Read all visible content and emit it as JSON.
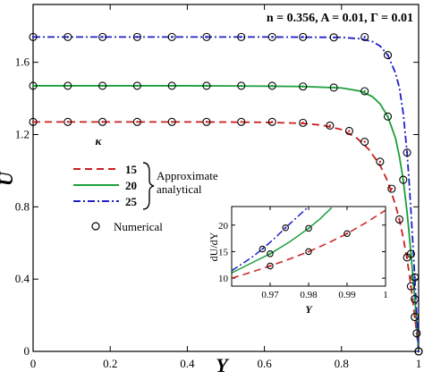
{
  "chart_data": [
    {
      "type": "line",
      "title": "",
      "annotation": "n = 0.356, A = 0.01, Γ = 0.01",
      "xlabel": "Y",
      "ylabel": "U",
      "xlim": [
        0,
        1
      ],
      "ylim": [
        0,
        1.92
      ],
      "xticks": [
        0,
        0.2,
        0.4,
        0.6,
        0.8,
        1
      ],
      "xtick_labels": [
        "0",
        "0.2",
        "0.4",
        "0.6",
        "0.8",
        "1"
      ],
      "yticks": [
        0,
        0.4,
        0.8,
        1.2,
        1.6
      ],
      "ytick_labels": [
        "0",
        "0.4",
        "0.8",
        "1.2",
        "1.6"
      ],
      "grid": false,
      "legend": {
        "placement": "middle-left",
        "title": "κ",
        "group_label_line1": "Approximate",
        "group_label_line2": "analytical",
        "numerical_label": "Numerical"
      },
      "series": [
        {
          "name": "15",
          "color": "#cc1f1f",
          "dash": "dashed",
          "x": [
            0,
            0.2,
            0.4,
            0.6,
            0.7,
            0.75,
            0.8,
            0.84,
            0.87,
            0.9,
            0.92,
            0.94,
            0.95,
            0.96,
            0.97,
            0.975,
            0.98,
            0.985,
            0.99,
            0.995,
            1.0
          ],
          "y": [
            1.27,
            1.27,
            1.27,
            1.268,
            1.262,
            1.252,
            1.228,
            1.18,
            1.12,
            1.03,
            0.94,
            0.81,
            0.73,
            0.63,
            0.51,
            0.44,
            0.36,
            0.28,
            0.19,
            0.1,
            0.0
          ]
        },
        {
          "name": "20",
          "color": "#1aa03c",
          "dash": "solid",
          "x": [
            0,
            0.2,
            0.4,
            0.6,
            0.7,
            0.8,
            0.85,
            0.88,
            0.9,
            0.92,
            0.94,
            0.95,
            0.96,
            0.97,
            0.975,
            0.98,
            0.985,
            0.99,
            0.995,
            1.0
          ],
          "y": [
            1.47,
            1.47,
            1.47,
            1.468,
            1.466,
            1.458,
            1.44,
            1.41,
            1.37,
            1.3,
            1.18,
            1.08,
            0.95,
            0.77,
            0.66,
            0.54,
            0.42,
            0.29,
            0.15,
            0.0
          ]
        },
        {
          "name": "25",
          "color": "#2020c8",
          "dash": "dashdot",
          "x": [
            0,
            0.2,
            0.4,
            0.6,
            0.8,
            0.85,
            0.88,
            0.9,
            0.92,
            0.94,
            0.95,
            0.96,
            0.97,
            0.975,
            0.98,
            0.985,
            0.99,
            0.995,
            1.0
          ],
          "y": [
            1.74,
            1.74,
            1.74,
            1.74,
            1.738,
            1.73,
            1.715,
            1.69,
            1.64,
            1.54,
            1.46,
            1.32,
            1.1,
            0.95,
            0.78,
            0.6,
            0.41,
            0.21,
            0.0
          ]
        }
      ],
      "numerical_points": [
        {
          "series": "15",
          "x": [
            0,
            0.09,
            0.18,
            0.27,
            0.36,
            0.45,
            0.54,
            0.62,
            0.7,
            0.77,
            0.82,
            0.86,
            0.9,
            0.93,
            0.95,
            0.97,
            0.98,
            0.99,
            0.995,
            1.0
          ],
          "y": [
            1.27,
            1.27,
            1.27,
            1.27,
            1.27,
            1.27,
            1.27,
            1.27,
            1.265,
            1.25,
            1.22,
            1.16,
            1.05,
            0.9,
            0.73,
            0.52,
            0.36,
            0.19,
            0.1,
            0.0
          ]
        },
        {
          "series": "20",
          "x": [
            0,
            0.09,
            0.18,
            0.27,
            0.36,
            0.45,
            0.54,
            0.62,
            0.7,
            0.78,
            0.86,
            0.92,
            0.96,
            0.98,
            0.99,
            1.0
          ],
          "y": [
            1.47,
            1.47,
            1.47,
            1.47,
            1.47,
            1.47,
            1.47,
            1.47,
            1.466,
            1.46,
            1.44,
            1.3,
            0.95,
            0.54,
            0.29,
            0.0
          ]
        },
        {
          "series": "25",
          "x": [
            0,
            0.09,
            0.18,
            0.27,
            0.36,
            0.45,
            0.54,
            0.62,
            0.7,
            0.78,
            0.86,
            0.92,
            0.97,
            0.99,
            1.0
          ],
          "y": [
            1.74,
            1.74,
            1.74,
            1.74,
            1.74,
            1.74,
            1.74,
            1.74,
            1.74,
            1.738,
            1.74,
            1.64,
            1.1,
            0.41,
            0.0
          ]
        }
      ]
    },
    {
      "type": "line",
      "title": "",
      "xlabel": "Y",
      "ylabel": "dU/dY",
      "xlim": [
        0.96,
        1.0
      ],
      "ylim": [
        8.5,
        23.5
      ],
      "xticks": [
        0.97,
        0.98,
        0.99,
        1.0
      ],
      "xtick_labels": [
        "0.97",
        "0.98",
        "0.99",
        "1"
      ],
      "yticks": [
        10,
        15,
        20
      ],
      "ytick_labels": [
        "10",
        "15",
        "20"
      ],
      "grid": false,
      "series": [
        {
          "name": "15",
          "color": "#cc1f1f",
          "dash": "dashed",
          "x": [
            0.96,
            0.965,
            0.97,
            0.975,
            0.98,
            0.985,
            0.99,
            0.995,
            1.0
          ],
          "y": [
            10.0,
            11.1,
            12.3,
            13.6,
            15.0,
            16.6,
            18.4,
            20.5,
            22.8
          ]
        },
        {
          "name": "20",
          "color": "#1aa03c",
          "dash": "solid",
          "x": [
            0.96,
            0.965,
            0.97,
            0.975,
            0.98,
            0.983,
            0.986
          ],
          "y": [
            11.0,
            12.8,
            14.6,
            16.8,
            19.4,
            21.2,
            23.3
          ]
        },
        {
          "name": "25",
          "color": "#2020c8",
          "dash": "dashdot",
          "x": [
            0.96,
            0.965,
            0.968,
            0.971,
            0.974,
            0.977,
            0.98
          ],
          "y": [
            11.4,
            13.8,
            15.5,
            17.4,
            19.5,
            21.5,
            23.5
          ]
        }
      ],
      "numerical_points": [
        {
          "series": "15",
          "x": [
            0.97,
            0.98,
            0.99
          ],
          "y": [
            12.3,
            15.0,
            18.4
          ]
        },
        {
          "series": "20",
          "x": [
            0.97,
            0.98
          ],
          "y": [
            14.6,
            19.4
          ]
        },
        {
          "series": "25",
          "x": [
            0.968,
            0.974
          ],
          "y": [
            15.5,
            19.5
          ]
        }
      ]
    }
  ]
}
